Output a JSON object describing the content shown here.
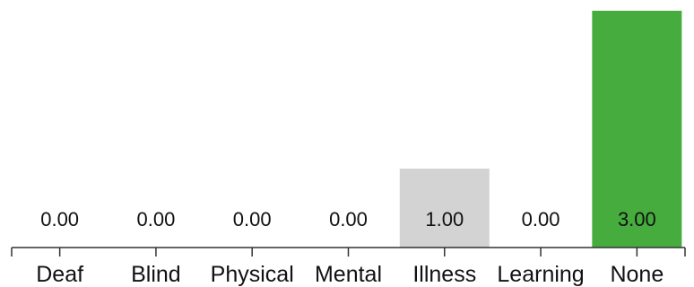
{
  "chart_data": {
    "type": "bar",
    "categories": [
      "Deaf",
      "Blind",
      "Physical",
      "Mental",
      "Illness",
      "Learning",
      "None"
    ],
    "values": [
      0,
      0,
      0,
      0,
      1,
      0,
      3
    ],
    "value_labels": [
      "0.00",
      "0.00",
      "0.00",
      "0.00",
      "1.00",
      "0.00",
      "3.00"
    ],
    "bar_colors": [
      "#d3d3d3",
      "#d3d3d3",
      "#d3d3d3",
      "#d3d3d3",
      "#d3d3d3",
      "#d3d3d3",
      "#46ac3e"
    ],
    "title": "",
    "xlabel": "",
    "ylabel": "",
    "ylim": [
      0,
      3
    ],
    "grid": false,
    "legend": "none"
  }
}
